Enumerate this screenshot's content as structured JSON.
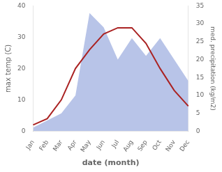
{
  "chart_data": {
    "type": "line",
    "xlabel": "date (month)",
    "ylabel": "max temp (C)",
    "y2label": "med. precipitation (kg/m2)",
    "categories": [
      "Jan",
      "Feb",
      "Mar",
      "Apr",
      "May",
      "Jun",
      "Jul",
      "Aug",
      "Sep",
      "Oct",
      "Nov",
      "Dec"
    ],
    "series": [
      {
        "type": "area",
        "color": "#b8c4e8",
        "axis": "y2",
        "values": [
          1,
          3,
          5,
          10,
          33,
          29,
          20,
          26,
          21,
          26,
          20,
          14
        ]
      },
      {
        "type": "line",
        "color": "#aa2222",
        "values": [
          2,
          4,
          10,
          20,
          26,
          31,
          33,
          33,
          28,
          20,
          13,
          8
        ]
      }
    ],
    "ylim": [
      0,
      40
    ],
    "yticks": [
      0,
      10,
      20,
      30,
      40
    ],
    "y2lim": [
      0,
      35
    ],
    "y2ticks": [
      0,
      5,
      10,
      15,
      20,
      25,
      30,
      35
    ],
    "grid": false
  }
}
